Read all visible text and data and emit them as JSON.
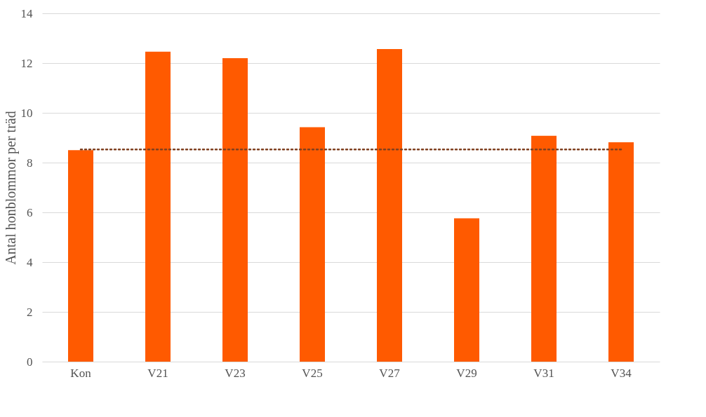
{
  "chart_data": {
    "type": "bar",
    "ylabel": "Antal honblommor per träd",
    "categories": [
      "Kon",
      "V21",
      "V23",
      "V25",
      "V27",
      "V29",
      "V31",
      "V34"
    ],
    "values": [
      8.5,
      12.46,
      12.2,
      9.42,
      12.56,
      5.76,
      9.08,
      8.82
    ],
    "color": "#ff5a00",
    "ylim": [
      0,
      14
    ],
    "yticks": [
      0,
      2,
      4,
      6,
      8,
      10,
      12,
      14
    ],
    "grid": "y",
    "ref_lines": [
      {
        "axis": "y",
        "value": 8.53,
        "color": "#7f3f1f",
        "line_style": "dotted"
      }
    ]
  }
}
